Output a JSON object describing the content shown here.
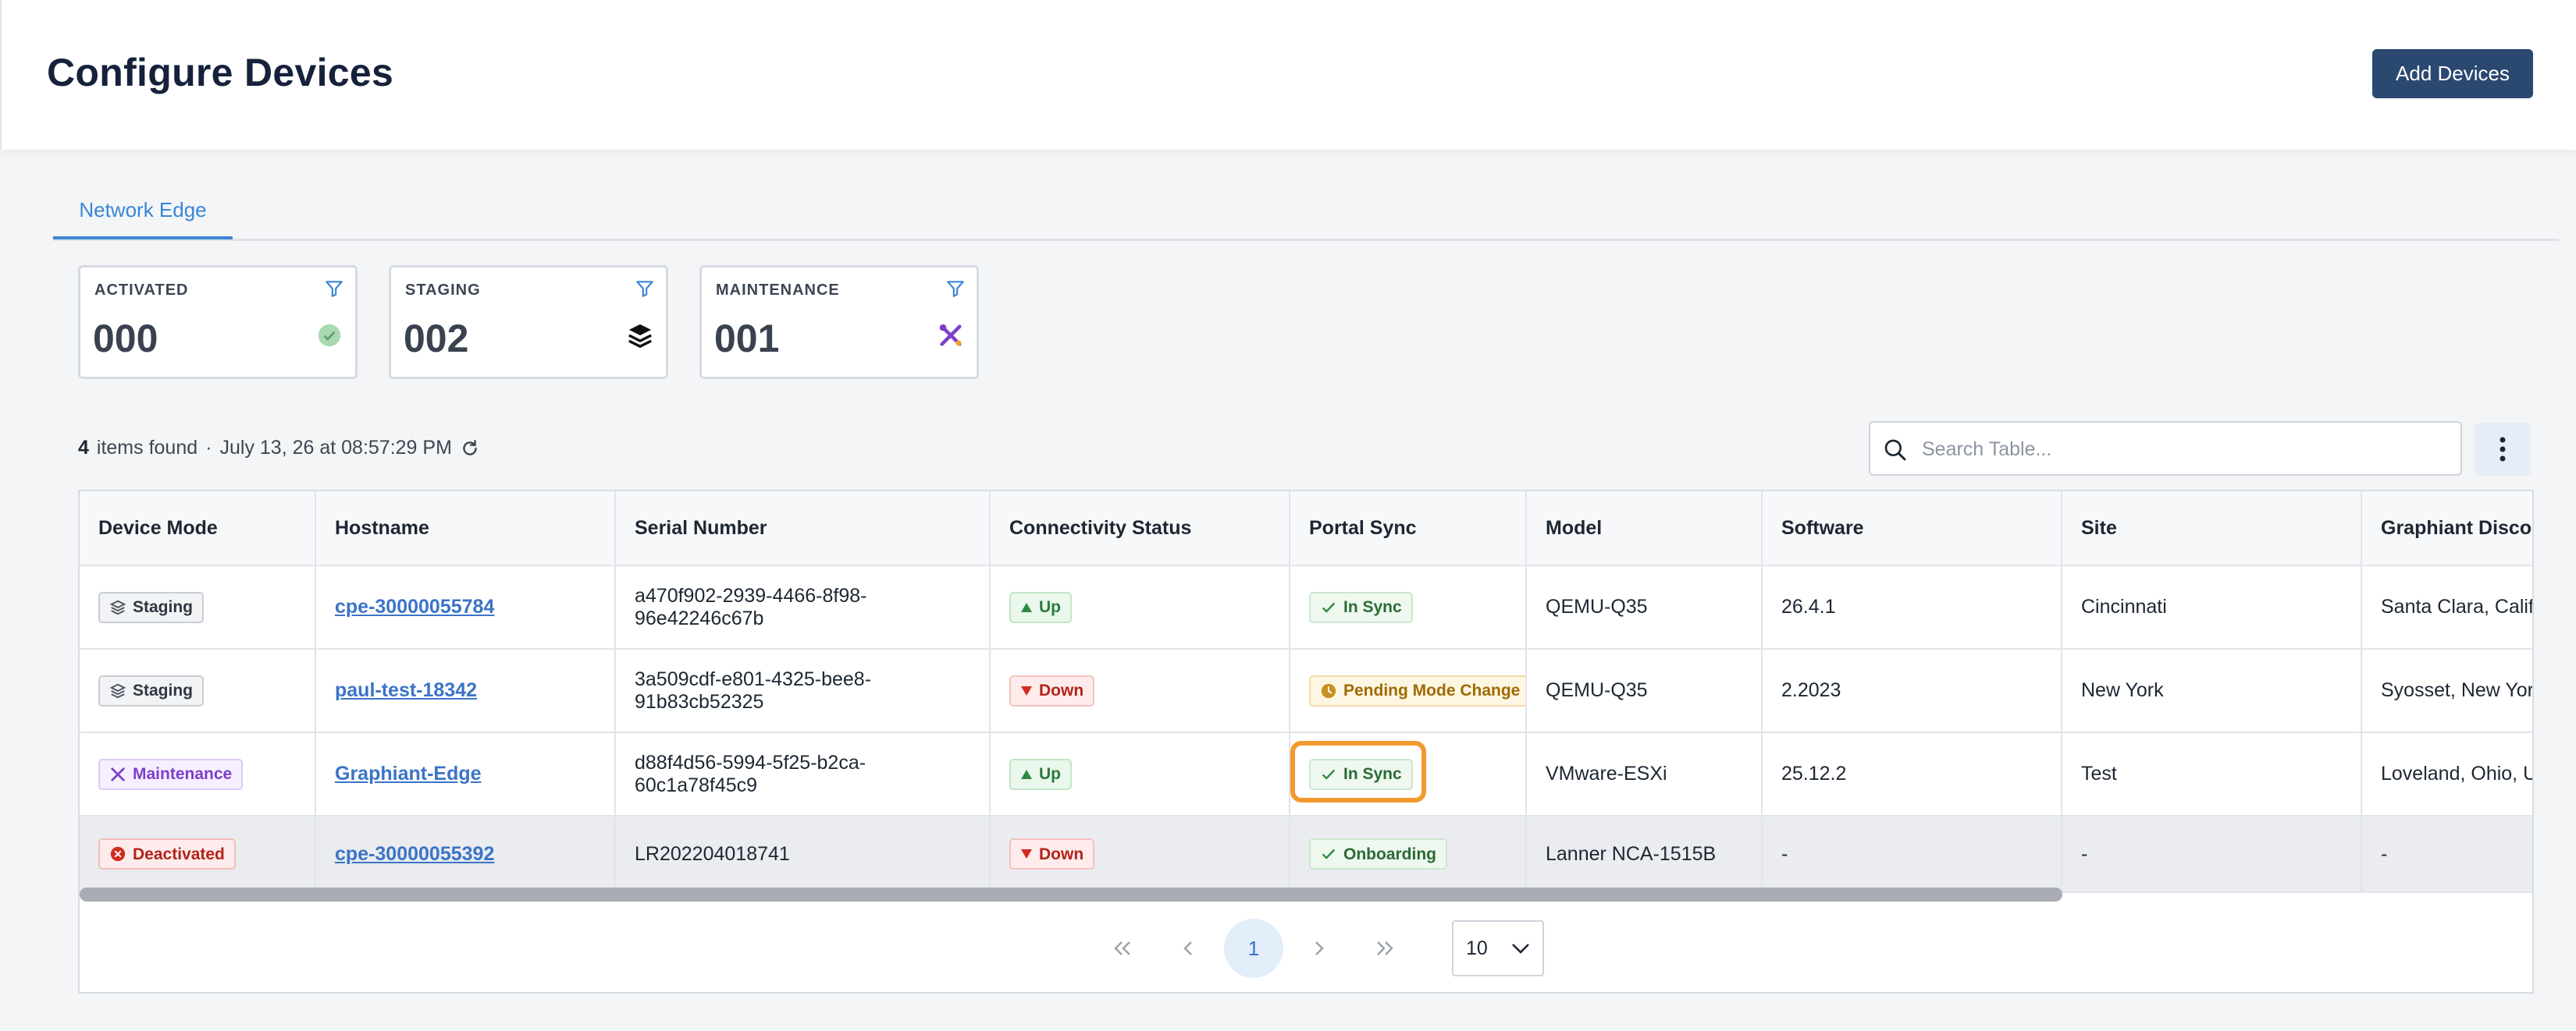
{
  "header": {
    "title": "Configure Devices",
    "add_button": "Add Devices"
  },
  "tabs": [
    {
      "label": "Network Edge",
      "active": true
    }
  ],
  "cards": [
    {
      "label": "ACTIVATED",
      "value": "000",
      "icon": "check-circle-icon",
      "color": "#9fd6a8"
    },
    {
      "label": "STAGING",
      "value": "002",
      "icon": "layers-icon",
      "color": "#111111"
    },
    {
      "label": "MAINTENANCE",
      "value": "001",
      "icon": "tools-icon",
      "color": "#7c3fc9"
    }
  ],
  "info": {
    "count": "4",
    "count_label": "items found",
    "separator": "·",
    "timestamp": "July 13, 26 at 08:57:29 PM"
  },
  "search": {
    "placeholder": "Search Table..."
  },
  "table": {
    "columns": [
      "Device Mode",
      "Hostname",
      "Serial Number",
      "Connectivity Status",
      "Portal Sync",
      "Model",
      "Software",
      "Site",
      "Graphiant Disco"
    ],
    "rows": [
      {
        "mode": "Staging",
        "hostname": "cpe-30000055784",
        "serial": "a470f902-2939-4466-8f98-96e42246c67b",
        "connectivity": "Up",
        "sync": "In Sync",
        "model": "QEMU-Q35",
        "software": "26.4.1",
        "site": "Cincinnati",
        "location": "Santa Clara, California, United States"
      },
      {
        "mode": "Staging",
        "hostname": "paul-test-18342",
        "serial": "3a509cdf-e801-4325-bee8-91b83cb52325",
        "connectivity": "Down",
        "sync": "Pending Mode Change",
        "model": "QEMU-Q35",
        "software": "2.2023",
        "site": "New York",
        "location": "Syosset, New York"
      },
      {
        "mode": "Maintenance",
        "hostname": "Graphiant-Edge",
        "serial": "d88f4d56-5994-5f25-b2ca-60c1a78f45c9",
        "connectivity": "Up",
        "sync": "In Sync",
        "model": "VMware-ESXi",
        "software": "25.12.2",
        "site": "Test",
        "location": "Loveland, Ohio, U"
      },
      {
        "mode": "Deactivated",
        "hostname": "cpe-30000055392",
        "serial": "LR202204018741",
        "connectivity": "Down",
        "sync": "Onboarding",
        "model": "Lanner NCA-1515B",
        "software": "-",
        "site": "-",
        "location": "-"
      }
    ]
  },
  "pagination": {
    "first": "«",
    "prev": "‹",
    "current": "1",
    "next": "›",
    "last": "»",
    "page_size": "10"
  }
}
